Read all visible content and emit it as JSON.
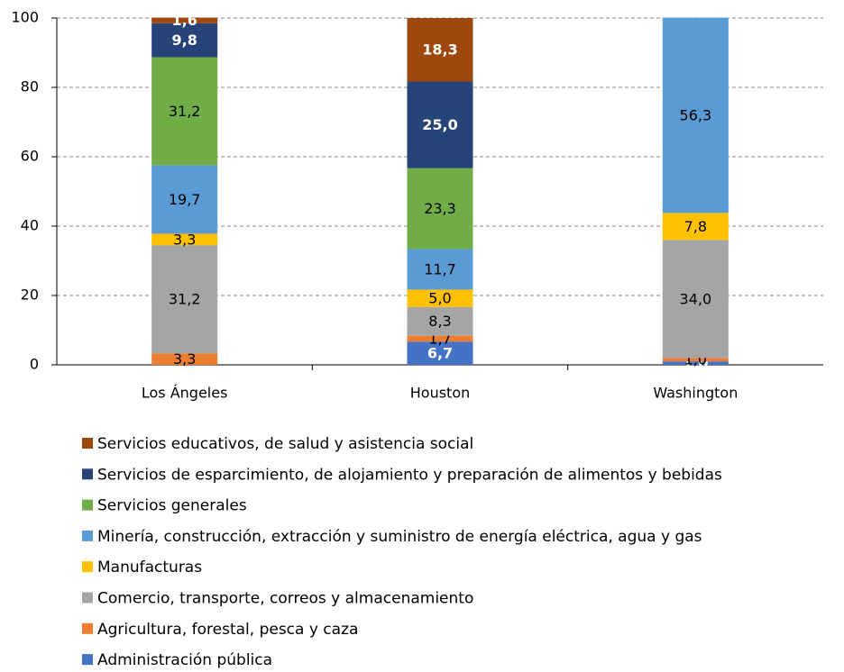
{
  "chart_data": {
    "type": "stacked_bar",
    "categories": [
      "Los Ángeles",
      "Houston",
      "Washington"
    ],
    "ylim": [
      0,
      100
    ],
    "yticks": [
      0,
      20,
      40,
      60,
      80,
      100
    ],
    "grid": true,
    "series": [
      {
        "name": "Administración pública",
        "color": "#4472c4",
        "values": [
          null,
          6.7,
          1.0
        ],
        "value_labels": [
          null,
          "6,7",
          "1,0"
        ]
      },
      {
        "name": "Agricultura, forestal, pesca y caza",
        "color": "#ed7d31",
        "values": [
          3.3,
          1.7,
          1.0
        ],
        "value_labels": [
          "3,3",
          "1,7",
          "1,0"
        ]
      },
      {
        "name": "Comercio, transporte, correos y almacenamiento",
        "color": "#a5a5a5",
        "values": [
          31.2,
          8.3,
          34.0
        ],
        "value_labels": [
          "31,2",
          "8,3",
          "34,0"
        ]
      },
      {
        "name": "Manufacturas",
        "color": "#ffc000",
        "values": [
          3.3,
          5.0,
          7.8
        ],
        "value_labels": [
          "3,3",
          "5,0",
          "7,8"
        ]
      },
      {
        "name": "Minería, construcción, extracción y suministro de energía eléctrica, agua y gas",
        "color": "#5b9bd5",
        "values": [
          19.7,
          11.7,
          56.3
        ],
        "value_labels": [
          "19,7",
          "11,7",
          "56,3"
        ]
      },
      {
        "name": "Servicios generales",
        "color": "#70ad47",
        "values": [
          31.2,
          23.3,
          null
        ],
        "value_labels": [
          "31,2",
          "23,3",
          null
        ]
      },
      {
        "name": "Servicios de esparcimiento, de alojamiento y preparación de alimentos y bebidas",
        "color": "#264478",
        "values": [
          9.8,
          25.0,
          null
        ],
        "value_labels": [
          "9,8",
          "25,0",
          null
        ]
      },
      {
        "name": "Servicios educativos, de salud y asistencia social",
        "color": "#9e480e",
        "values": [
          1.6,
          18.3,
          null
        ],
        "value_labels": [
          "1,6",
          "18,3",
          null
        ]
      }
    ]
  }
}
